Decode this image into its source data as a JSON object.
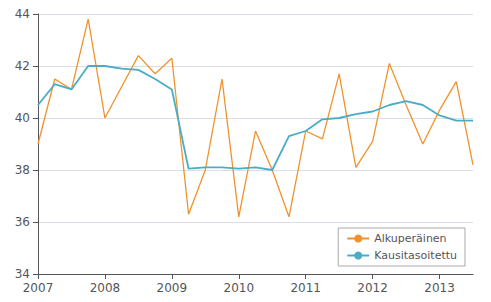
{
  "chart_data": {
    "type": "line",
    "x": [
      2007.0,
      2007.25,
      2007.5,
      2007.75,
      2008.0,
      2008.25,
      2008.5,
      2008.75,
      2009.0,
      2009.25,
      2009.5,
      2009.75,
      2010.0,
      2010.25,
      2010.5,
      2010.75,
      2011.0,
      2011.25,
      2011.5,
      2011.75,
      2012.0,
      2012.25,
      2012.5,
      2012.75,
      2013.0,
      2013.25,
      2013.5
    ],
    "series": [
      {
        "name": "Alkuperäinen",
        "color": "#f0922b",
        "values": [
          39.0,
          41.5,
          41.1,
          43.8,
          40.0,
          41.2,
          42.4,
          41.7,
          42.3,
          36.3,
          38.0,
          41.5,
          36.2,
          39.5,
          38.0,
          36.2,
          39.5,
          39.2,
          41.7,
          38.1,
          39.1,
          42.1,
          40.5,
          39.0,
          40.3,
          41.4,
          38.2
        ]
      },
      {
        "name": "Kausitasoitettu",
        "color": "#4bacc6",
        "values": [
          40.5,
          41.3,
          41.1,
          42.0,
          42.0,
          41.9,
          41.85,
          41.5,
          41.1,
          38.05,
          38.1,
          38.1,
          38.05,
          38.1,
          38.0,
          39.3,
          39.5,
          39.95,
          40.0,
          40.15,
          40.25,
          40.5,
          40.65,
          40.5,
          40.1,
          39.9,
          39.9
        ]
      }
    ],
    "xlim": [
      2007,
      2013.5
    ],
    "xticks": [
      2007,
      2008,
      2009,
      2010,
      2011,
      2012,
      2013
    ],
    "ylim": [
      34,
      44
    ],
    "yticks": [
      34,
      36,
      38,
      40,
      42,
      44
    ],
    "grid": true,
    "legend": "lower right"
  }
}
